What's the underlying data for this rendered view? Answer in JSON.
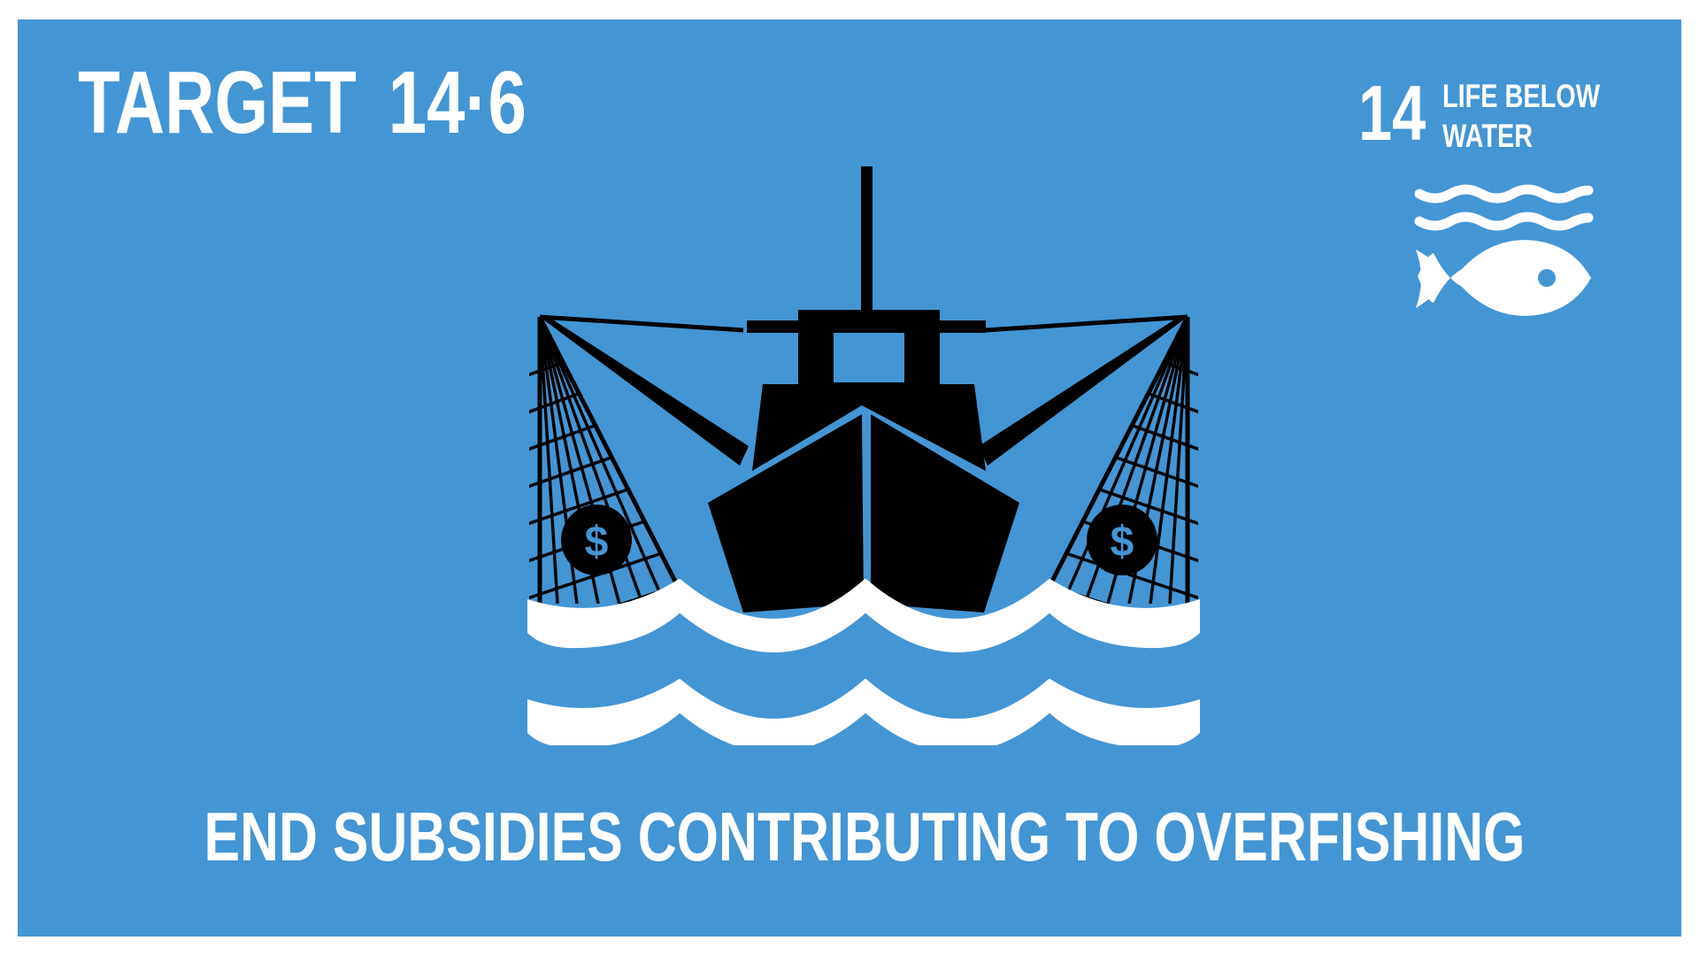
{
  "header": {
    "target_word": "TARGET",
    "target_number": "14·6"
  },
  "goal": {
    "number": "14",
    "label_line1": "LIFE BELOW",
    "label_line2": "WATER",
    "icons": [
      "waves-icon",
      "fish-icon"
    ]
  },
  "illustration": {
    "icons": [
      "fishing-boat-icon",
      "fishing-net-icon",
      "dollar-coin-icon",
      "waves-icon"
    ],
    "coin_symbol": "$"
  },
  "caption": "END SUBSIDIES CONTRIBUTING TO OVERFISHING",
  "colors": {
    "background": "#4495d4",
    "foreground": "#ffffff",
    "boat": "#000000"
  }
}
